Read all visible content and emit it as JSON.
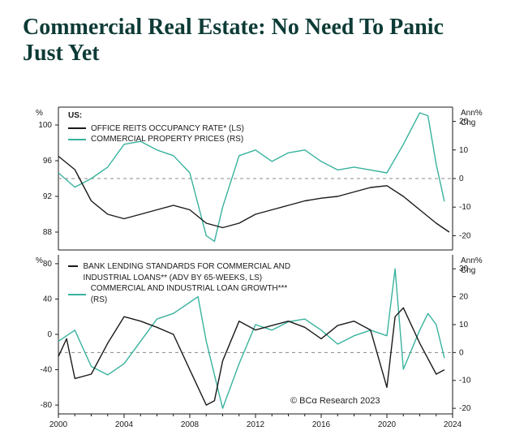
{
  "title": "Commercial Real Estate: No Need To Panic Just Yet",
  "source": "© BCα Research 2023",
  "colors": {
    "title": "#0d3b36",
    "axis": "#1a1a1a",
    "grid": "#888888",
    "series_dark": "#1a1a1a",
    "series_teal": "#39b29d",
    "background": "#ffffff"
  },
  "x_axis": {
    "min": 2000,
    "max": 2024,
    "ticks": [
      2000,
      2004,
      2008,
      2012,
      2016,
      2020,
      2024
    ],
    "fontsize": 10
  },
  "panel_top": {
    "left_axis": {
      "label": "%",
      "min": 86,
      "max": 102,
      "ticks": [
        88,
        92,
        96,
        100
      ],
      "fontsize": 10
    },
    "right_axis": {
      "label_line1": "Ann%",
      "label_line2": "Chg",
      "min": -25,
      "max": 25,
      "ticks": [
        -20,
        -10,
        0,
        10,
        20
      ],
      "zero_line": 0,
      "fontsize": 10
    },
    "legend": {
      "heading": "US:",
      "items": [
        {
          "label": "OFFICE REITS OCCUPANCY RATE* (LS)",
          "color": "#1a1a1a"
        },
        {
          "label": "COMMERCIAL PROPERTY PRICES (RS)",
          "color": "#39b29d"
        }
      ]
    },
    "series1_dark_LS": [
      [
        2000,
        96.5
      ],
      [
        2001,
        95.0
      ],
      [
        2002,
        91.5
      ],
      [
        2003,
        90.0
      ],
      [
        2004,
        89.5
      ],
      [
        2005,
        90.0
      ],
      [
        2006,
        90.5
      ],
      [
        2007,
        91.0
      ],
      [
        2008,
        90.5
      ],
      [
        2009,
        89.0
      ],
      [
        2010,
        88.5
      ],
      [
        2011,
        89.0
      ],
      [
        2012,
        90.0
      ],
      [
        2013,
        90.5
      ],
      [
        2014,
        91.0
      ],
      [
        2015,
        91.5
      ],
      [
        2016,
        91.8
      ],
      [
        2017,
        92.0
      ],
      [
        2018,
        92.5
      ],
      [
        2019,
        93.0
      ],
      [
        2020,
        93.2
      ],
      [
        2021,
        92.0
      ],
      [
        2022,
        90.5
      ],
      [
        2023,
        89.0
      ],
      [
        2023.8,
        88.0
      ]
    ],
    "series2_teal_RS": [
      [
        2000,
        2
      ],
      [
        2001,
        -3
      ],
      [
        2002,
        0
      ],
      [
        2003,
        4
      ],
      [
        2004,
        12
      ],
      [
        2005,
        13
      ],
      [
        2006,
        10
      ],
      [
        2007,
        8
      ],
      [
        2008,
        2
      ],
      [
        2009,
        -20
      ],
      [
        2009.5,
        -22
      ],
      [
        2010,
        -10
      ],
      [
        2011,
        8
      ],
      [
        2012,
        10
      ],
      [
        2013,
        6
      ],
      [
        2014,
        9
      ],
      [
        2015,
        10
      ],
      [
        2016,
        6
      ],
      [
        2017,
        3
      ],
      [
        2018,
        4
      ],
      [
        2019,
        3
      ],
      [
        2020,
        2
      ],
      [
        2021,
        12
      ],
      [
        2022,
        23
      ],
      [
        2022.5,
        22
      ],
      [
        2023,
        5
      ],
      [
        2023.5,
        -8
      ]
    ]
  },
  "panel_bottom": {
    "left_axis": {
      "label": "%",
      "min": -90,
      "max": 90,
      "ticks": [
        -80,
        -40,
        0,
        40,
        80
      ],
      "fontsize": 10
    },
    "right_axis": {
      "label_line1": "Ann%",
      "label_line2": "Chg",
      "min": -22,
      "max": 35,
      "ticks": [
        -20,
        -10,
        0,
        10,
        20,
        30
      ],
      "zero_line": 0,
      "fontsize": 10
    },
    "legend": {
      "items": [
        {
          "label": "BANK LENDING STANDARDS FOR COMMERCIAL AND INDUSTRIAL LOANS** (ADV BY 65-WEEKS, LS)",
          "color": "#1a1a1a"
        },
        {
          "label": "COMMERCIAL AND INDUSTRIAL LOAN GROWTH*** (RS)",
          "color": "#39b29d"
        }
      ]
    },
    "series1_dark_LS": [
      [
        2000,
        -25
      ],
      [
        2000.5,
        -5
      ],
      [
        2001,
        -50
      ],
      [
        2002,
        -45
      ],
      [
        2003,
        -10
      ],
      [
        2004,
        20
      ],
      [
        2005,
        15
      ],
      [
        2006,
        8
      ],
      [
        2007,
        0
      ],
      [
        2008,
        -40
      ],
      [
        2009,
        -80
      ],
      [
        2009.5,
        -75
      ],
      [
        2010,
        -30
      ],
      [
        2011,
        15
      ],
      [
        2012,
        5
      ],
      [
        2013,
        10
      ],
      [
        2014,
        15
      ],
      [
        2015,
        8
      ],
      [
        2016,
        -5
      ],
      [
        2017,
        10
      ],
      [
        2018,
        15
      ],
      [
        2019,
        5
      ],
      [
        2020,
        -60
      ],
      [
        2020.5,
        20
      ],
      [
        2021,
        30
      ],
      [
        2022,
        -10
      ],
      [
        2023,
        -45
      ],
      [
        2023.5,
        -40
      ]
    ],
    "series2_teal_RS": [
      [
        2000,
        4
      ],
      [
        2001,
        8
      ],
      [
        2002,
        -5
      ],
      [
        2003,
        -8
      ],
      [
        2004,
        -4
      ],
      [
        2005,
        4
      ],
      [
        2006,
        12
      ],
      [
        2007,
        14
      ],
      [
        2008,
        18
      ],
      [
        2008.5,
        20
      ],
      [
        2009,
        4
      ],
      [
        2010,
        -20
      ],
      [
        2011,
        -4
      ],
      [
        2012,
        10
      ],
      [
        2013,
        8
      ],
      [
        2014,
        11
      ],
      [
        2015,
        12
      ],
      [
        2016,
        8
      ],
      [
        2017,
        3
      ],
      [
        2018,
        6
      ],
      [
        2019,
        8
      ],
      [
        2020,
        6
      ],
      [
        2020.5,
        30
      ],
      [
        2021,
        -6
      ],
      [
        2022,
        8
      ],
      [
        2022.5,
        14
      ],
      [
        2023,
        10
      ],
      [
        2023.5,
        -2
      ]
    ]
  },
  "line_width": 1.4
}
